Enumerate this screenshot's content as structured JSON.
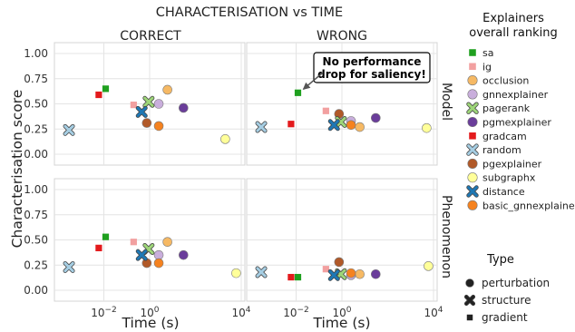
{
  "chart_data": {
    "type": "scatter",
    "title": "CHARACTERISATION vs TIME",
    "xlabel": "Time (s)",
    "ylabel": "Characterisation score",
    "x_scale": "log",
    "xlim": [
      0.0001,
      10000
    ],
    "ylim": [
      0,
      1
    ],
    "x_ticks": [
      0.01,
      1,
      10000
    ],
    "x_tick_labels": [
      "10⁻²",
      "10⁰",
      "10⁴"
    ],
    "y_ticks": [
      0.0,
      0.25,
      0.5,
      0.75,
      1.0
    ],
    "y_tick_labels": [
      "0.00",
      "0.25",
      "0.50",
      "0.75",
      "1.00"
    ],
    "grid": true,
    "columns": [
      "CORRECT",
      "WRONG"
    ],
    "rows": [
      "Model",
      "Phenomenon"
    ],
    "annotation": {
      "text": [
        "No performance",
        "drop for saliency!"
      ],
      "panel": "Model-WRONG",
      "points_to": "sa"
    },
    "legend_explainers_title": [
      "Explainers",
      "overall ranking"
    ],
    "legend_type_title": "Type",
    "types": [
      {
        "label": "perturbation",
        "marker": "circle"
      },
      {
        "label": "structure",
        "marker": "x"
      },
      {
        "label": "gradient",
        "marker": "square"
      }
    ],
    "explainers": [
      {
        "name": "sa",
        "color": "#1fa01f",
        "marker": "square"
      },
      {
        "name": "ig",
        "color": "#f2a0a0",
        "marker": "square"
      },
      {
        "name": "occlusion",
        "color": "#f6b964",
        "marker": "circle"
      },
      {
        "name": "gnnexplainer",
        "color": "#c9aedc",
        "marker": "circle"
      },
      {
        "name": "pagerank",
        "color": "#9ed679",
        "marker": "x"
      },
      {
        "name": "pgmexplainer",
        "color": "#6a3d9a",
        "marker": "circle"
      },
      {
        "name": "gradcam",
        "color": "#e31a1c",
        "marker": "square"
      },
      {
        "name": "random",
        "color": "#a6cee3",
        "marker": "x"
      },
      {
        "name": "pgexplainer",
        "color": "#b15928",
        "marker": "circle"
      },
      {
        "name": "subgraphx",
        "color": "#ffff99",
        "marker": "circle"
      },
      {
        "name": "distance",
        "color": "#1f78b4",
        "marker": "x"
      },
      {
        "name": "basic_gnnexplainer",
        "color": "#f5821f",
        "marker": "circle"
      }
    ],
    "panels": [
      {
        "row": "Model",
        "col": "CORRECT",
        "points": [
          {
            "e": "sa",
            "x": 0.012,
            "y": 0.65
          },
          {
            "e": "ig",
            "x": 0.2,
            "y": 0.49
          },
          {
            "e": "occlusion",
            "x": 6,
            "y": 0.64
          },
          {
            "e": "gnnexplainer",
            "x": 2.5,
            "y": 0.5
          },
          {
            "e": "pagerank",
            "x": 0.9,
            "y": 0.52
          },
          {
            "e": "pgmexplainer",
            "x": 30,
            "y": 0.46
          },
          {
            "e": "gradcam",
            "x": 0.006,
            "y": 0.59
          },
          {
            "e": "random",
            "x": 0.0003,
            "y": 0.24
          },
          {
            "e": "pgexplainer",
            "x": 0.75,
            "y": 0.31
          },
          {
            "e": "subgraphx",
            "x": 2000,
            "y": 0.15
          },
          {
            "e": "distance",
            "x": 0.45,
            "y": 0.42
          },
          {
            "e": "basic_gnnexplainer",
            "x": 2.5,
            "y": 0.28
          }
        ]
      },
      {
        "row": "Model",
        "col": "WRONG",
        "points": [
          {
            "e": "sa",
            "x": 0.012,
            "y": 0.61
          },
          {
            "e": "ig",
            "x": 0.2,
            "y": 0.43
          },
          {
            "e": "occlusion",
            "x": 6,
            "y": 0.27
          },
          {
            "e": "gnnexplainer",
            "x": 2.5,
            "y": 0.33
          },
          {
            "e": "pagerank",
            "x": 0.9,
            "y": 0.32
          },
          {
            "e": "pgmexplainer",
            "x": 30,
            "y": 0.36
          },
          {
            "e": "gradcam",
            "x": 0.006,
            "y": 0.3
          },
          {
            "e": "random",
            "x": 0.0003,
            "y": 0.27
          },
          {
            "e": "pgexplainer",
            "x": 0.75,
            "y": 0.4
          },
          {
            "e": "subgraphx",
            "x": 5000,
            "y": 0.26
          },
          {
            "e": "distance",
            "x": 0.45,
            "y": 0.29
          },
          {
            "e": "basic_gnnexplainer",
            "x": 2.5,
            "y": 0.29
          }
        ]
      },
      {
        "row": "Phenomenon",
        "col": "CORRECT",
        "points": [
          {
            "e": "sa",
            "x": 0.012,
            "y": 0.53
          },
          {
            "e": "ig",
            "x": 0.2,
            "y": 0.48
          },
          {
            "e": "occlusion",
            "x": 6,
            "y": 0.48
          },
          {
            "e": "gnnexplainer",
            "x": 2.5,
            "y": 0.35
          },
          {
            "e": "pagerank",
            "x": 0.9,
            "y": 0.41
          },
          {
            "e": "pgmexplainer",
            "x": 30,
            "y": 0.35
          },
          {
            "e": "gradcam",
            "x": 0.006,
            "y": 0.42
          },
          {
            "e": "random",
            "x": 0.0003,
            "y": 0.23
          },
          {
            "e": "pgexplainer",
            "x": 0.75,
            "y": 0.27
          },
          {
            "e": "subgraphx",
            "x": 6000,
            "y": 0.17
          },
          {
            "e": "distance",
            "x": 0.45,
            "y": 0.35
          },
          {
            "e": "basic_gnnexplainer",
            "x": 2.5,
            "y": 0.27
          }
        ]
      },
      {
        "row": "Phenomenon",
        "col": "WRONG",
        "points": [
          {
            "e": "sa",
            "x": 0.012,
            "y": 0.13
          },
          {
            "e": "ig",
            "x": 0.2,
            "y": 0.21
          },
          {
            "e": "occlusion",
            "x": 6,
            "y": 0.16
          },
          {
            "e": "gnnexplainer",
            "x": 2.5,
            "y": 0.15
          },
          {
            "e": "pagerank",
            "x": 0.9,
            "y": 0.16
          },
          {
            "e": "pgmexplainer",
            "x": 30,
            "y": 0.16
          },
          {
            "e": "gradcam",
            "x": 0.006,
            "y": 0.13
          },
          {
            "e": "random",
            "x": 0.0003,
            "y": 0.18
          },
          {
            "e": "pgexplainer",
            "x": 0.75,
            "y": 0.28
          },
          {
            "e": "subgraphx",
            "x": 6000,
            "y": 0.24
          },
          {
            "e": "distance",
            "x": 0.45,
            "y": 0.15
          },
          {
            "e": "basic_gnnexplainer",
            "x": 2.5,
            "y": 0.17
          }
        ]
      }
    ]
  }
}
